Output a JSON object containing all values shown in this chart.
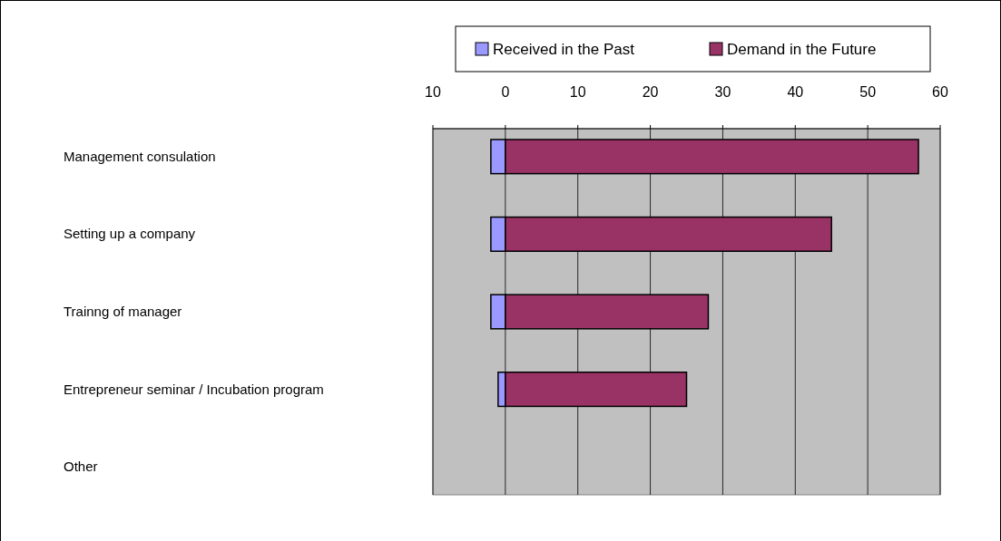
{
  "chart_data": {
    "type": "bar",
    "orientation": "horizontal",
    "stacked": true,
    "categories": [
      "Management consulation",
      "Setting up a company",
      "Trainng of manager",
      "Entrepreneur seminar / Incubation program",
      "Other"
    ],
    "series": [
      {
        "name": "Received in the Past",
        "color": "#9999ff",
        "values": [
          -2,
          -2,
          -2,
          -1,
          null
        ]
      },
      {
        "name": "Demand in the Future",
        "color": "#993366",
        "values": [
          57,
          45,
          28,
          25,
          null
        ]
      }
    ],
    "xlim": [
      -10,
      60
    ],
    "xticks": [
      {
        "value": -10,
        "label": "10"
      },
      0,
      10,
      20,
      30,
      40,
      50,
      60
    ],
    "grid": "x",
    "legend": "top"
  }
}
